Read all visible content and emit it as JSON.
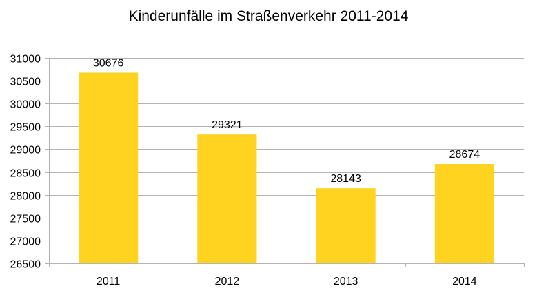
{
  "chart_data": {
    "type": "bar",
    "title": "Kinderunfälle im Straßenverkehr 2011-2014",
    "categories": [
      "2011",
      "2012",
      "2013",
      "2014"
    ],
    "values": [
      30676,
      29321,
      28143,
      28674
    ],
    "data_labels": [
      "30676",
      "29321",
      "28143",
      "28674"
    ],
    "y_ticks": [
      26500,
      27000,
      27500,
      28000,
      28500,
      29000,
      29500,
      30000,
      30500,
      31000
    ],
    "ylim": [
      26500,
      31000
    ],
    "xlabel": "",
    "ylabel": "",
    "grid": true,
    "legend": "none",
    "bar_color": "#FFD320",
    "grid_color": "#B3B3B3"
  }
}
